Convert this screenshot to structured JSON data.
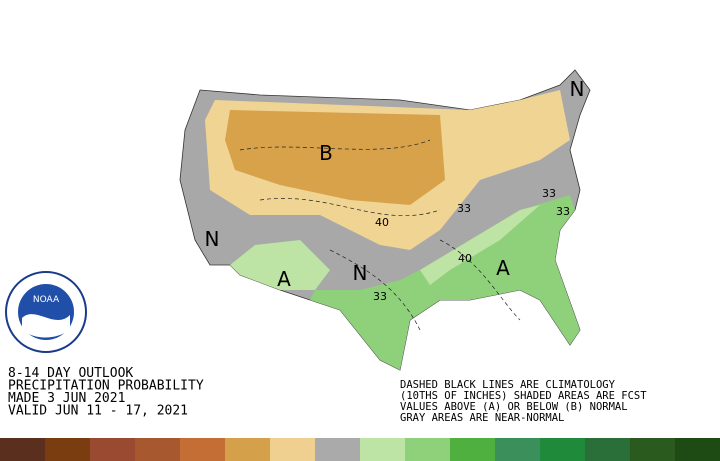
{
  "header": {
    "lines": [
      "8-14 DAY OUTLOOK",
      "PRECIPITATION PROBABILITY",
      "MADE  3 JUN 2021",
      "VALID  JUN 11 - 17, 2021"
    ]
  },
  "notes": {
    "lines": [
      "DASHED BLACK LINES ARE CLIMATOLOGY",
      "(10THS OF INCHES) SHADED AREAS ARE FCST",
      "VALUES ABOVE (A) OR BELOW (B) NORMAL",
      "GRAY AREAS ARE NEAR-NORMAL"
    ]
  },
  "logo": {
    "text": "NOAA"
  },
  "map": {
    "region_labels": [
      "B",
      "A",
      "A",
      "N",
      "N",
      "N"
    ],
    "contour_labels": [
      40,
      40,
      33,
      33,
      33,
      33
    ]
  }
}
